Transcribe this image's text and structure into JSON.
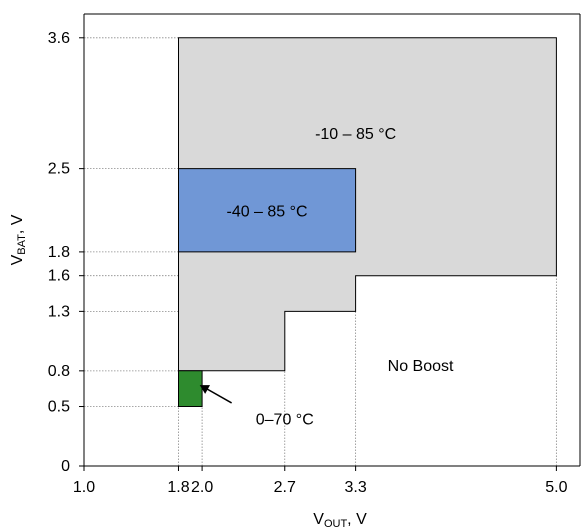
{
  "chart_data": {
    "type": "area",
    "title": "",
    "x_axis": {
      "label_main": "V",
      "label_sub": "OUT",
      "label_unit": ", V",
      "range": [
        1.0,
        5.2
      ],
      "ticks": [
        {
          "value": 1.0,
          "label": "1.0"
        },
        {
          "value": 1.8,
          "label": "1.8"
        },
        {
          "value": 2.0,
          "label": "2.0"
        },
        {
          "value": 2.7,
          "label": "2.7"
        },
        {
          "value": 3.3,
          "label": "3.3"
        },
        {
          "value": 5.0,
          "label": "5.0"
        }
      ]
    },
    "y_axis": {
      "label_main": "V",
      "label_sub": "BAT",
      "label_unit": ", V",
      "range": [
        0,
        3.8
      ],
      "ticks": [
        {
          "value": 0,
          "label": "0"
        },
        {
          "value": 0.5,
          "label": "0.5"
        },
        {
          "value": 0.8,
          "label": "0.8"
        },
        {
          "value": 1.3,
          "label": "1.3"
        },
        {
          "value": 1.6,
          "label": "1.6"
        },
        {
          "value": 1.8,
          "label": "1.8"
        },
        {
          "value": 2.5,
          "label": "2.5"
        },
        {
          "value": 3.6,
          "label": "3.6"
        }
      ]
    },
    "regions": [
      {
        "name": "-10 – 85 °C",
        "color": "#d9d9d9",
        "polygon": [
          [
            1.8,
            0.8
          ],
          [
            1.8,
            3.6
          ],
          [
            5.0,
            3.6
          ],
          [
            5.0,
            1.6
          ],
          [
            3.3,
            1.6
          ],
          [
            3.3,
            1.3
          ],
          [
            2.7,
            1.3
          ],
          [
            2.7,
            0.8
          ]
        ],
        "label_at": [
          3.3,
          2.8
        ]
      },
      {
        "name": "-40 – 85 °C",
        "color": "#7097d6",
        "polygon": [
          [
            1.8,
            1.8
          ],
          [
            1.8,
            2.5
          ],
          [
            3.3,
            2.5
          ],
          [
            3.3,
            1.8
          ]
        ],
        "label_at": [
          2.55,
          2.15
        ]
      },
      {
        "name": "0–70 °C",
        "color": "#2e8b2e",
        "polygon": [
          [
            1.8,
            0.5
          ],
          [
            1.8,
            0.8
          ],
          [
            2.0,
            0.8
          ],
          [
            2.0,
            0.5
          ]
        ],
        "label_at": [
          2.7,
          0.4
        ]
      }
    ],
    "annotations": [
      {
        "text": "No Boost",
        "at": [
          3.85,
          0.85
        ]
      }
    ],
    "grid": "dotted guide lines at region boundaries",
    "legend": "none"
  }
}
